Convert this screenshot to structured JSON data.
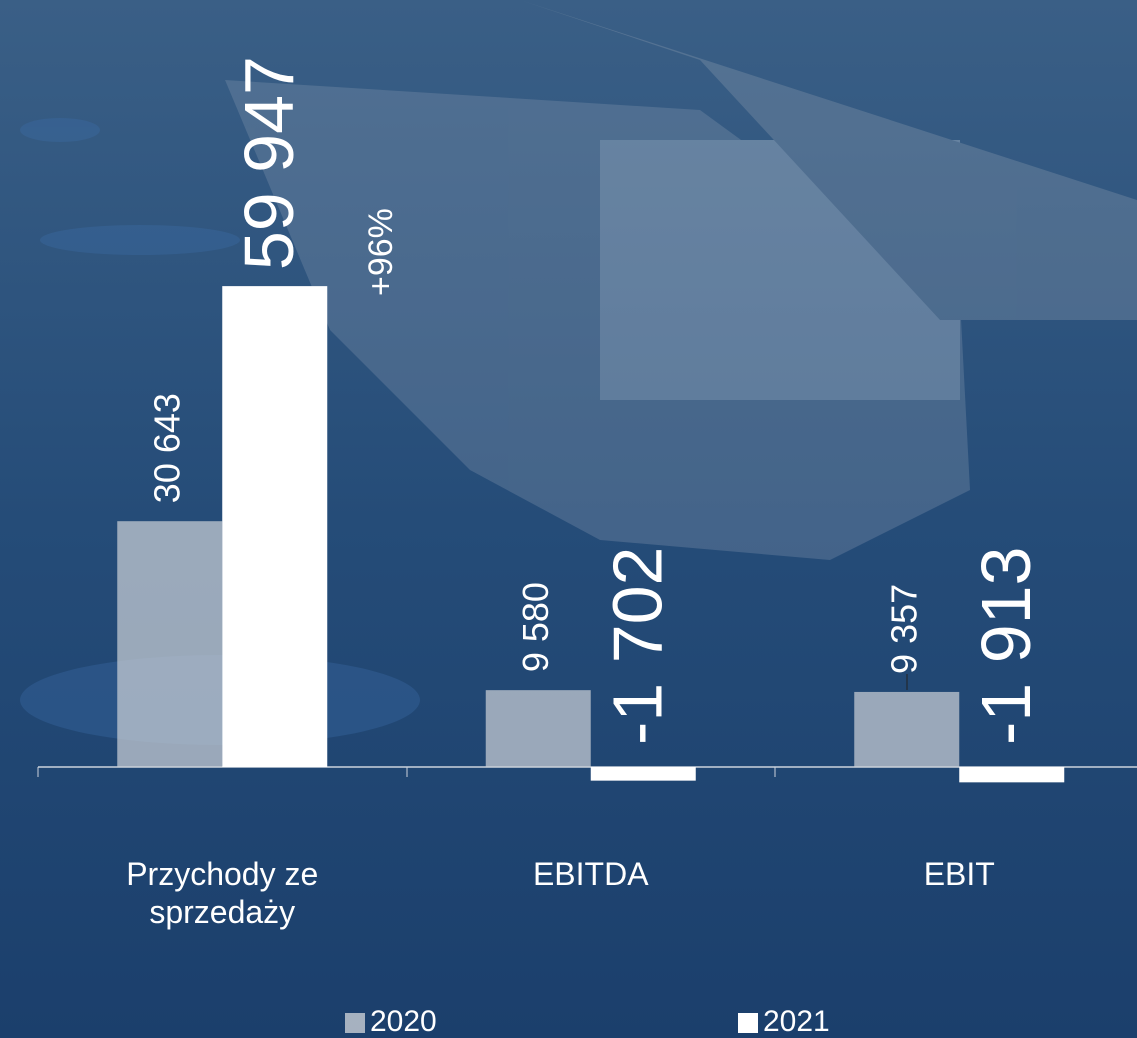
{
  "chart_data": {
    "type": "bar",
    "categories": [
      "Przychody ze sprzedaży",
      "EBITDA",
      "EBIT"
    ],
    "series": [
      {
        "name": "2020",
        "color": "#c9ced6",
        "values": [
          30643,
          9580,
          9357
        ],
        "value_labels": [
          "30 643",
          "9 580",
          "9 357"
        ]
      },
      {
        "name": "2021",
        "color": "#ffffff",
        "values": [
          59947,
          -1702,
          -1913
        ],
        "value_labels": [
          "59 947",
          "-1 702",
          "-1 913"
        ]
      }
    ],
    "annotation": "+96%",
    "ylim": [
      -2000,
      60000
    ],
    "legend": "bottom"
  }
}
